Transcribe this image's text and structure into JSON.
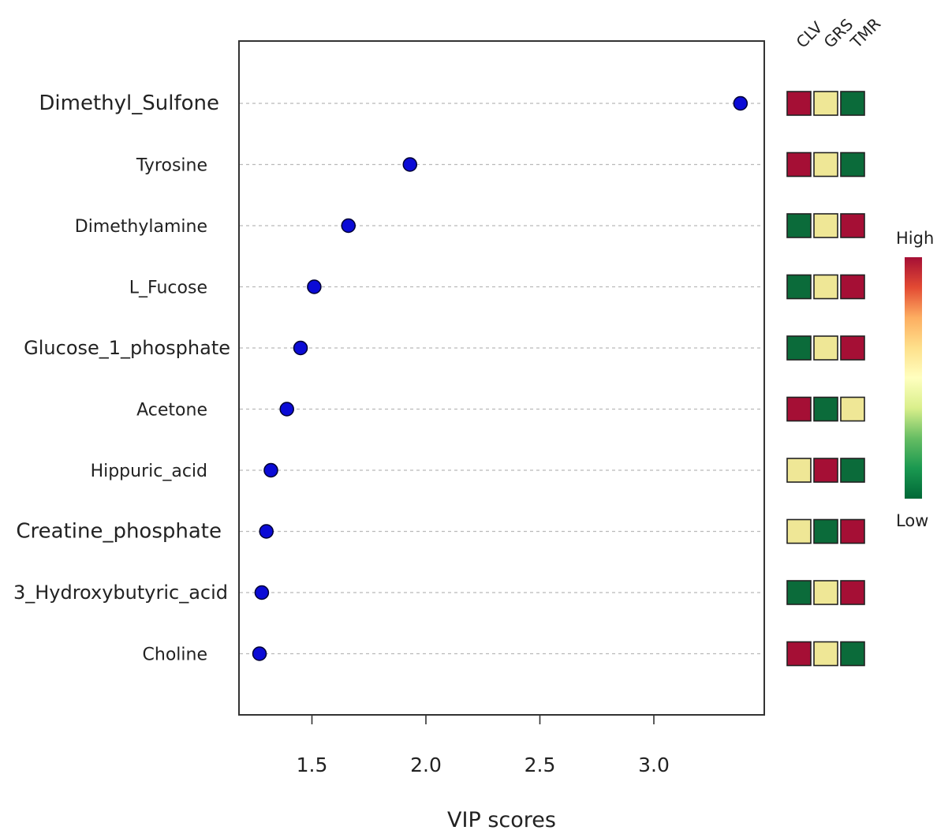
{
  "chart_data": {
    "type": "scatter",
    "title": "",
    "xlabel": "VIP scores",
    "ylabel": "",
    "xlim": [
      1.22,
      3.45
    ],
    "xticks": [
      1.5,
      2.0,
      2.5,
      3.0
    ],
    "xtick_labels": [
      "1.5",
      "2.0",
      "2.5",
      "3.0"
    ],
    "grid": "horizontal dashed",
    "point_color": "#0b0bd6",
    "features": [
      {
        "name": "Dimethyl_Sulfone",
        "vip": 3.38,
        "levels": [
          "high",
          "mid",
          "low"
        ]
      },
      {
        "name": "Tyrosine",
        "vip": 1.93,
        "levels": [
          "high",
          "mid",
          "low"
        ]
      },
      {
        "name": "Dimethylamine",
        "vip": 1.66,
        "levels": [
          "low",
          "mid",
          "high"
        ]
      },
      {
        "name": "L_Fucose",
        "vip": 1.51,
        "levels": [
          "low",
          "mid",
          "high"
        ]
      },
      {
        "name": "Glucose_1_phosphate",
        "vip": 1.45,
        "levels": [
          "low",
          "mid",
          "high"
        ]
      },
      {
        "name": "Acetone",
        "vip": 1.39,
        "levels": [
          "high",
          "low",
          "mid"
        ]
      },
      {
        "name": "Hippuric_acid",
        "vip": 1.32,
        "levels": [
          "mid",
          "high",
          "low"
        ]
      },
      {
        "name": "Creatine_phosphate",
        "vip": 1.3,
        "levels": [
          "mid",
          "low",
          "high"
        ]
      },
      {
        "name": "3_Hydroxybutyric_acid",
        "vip": 1.28,
        "levels": [
          "low",
          "mid",
          "high"
        ]
      },
      {
        "name": "Choline",
        "vip": 1.27,
        "levels": [
          "high",
          "mid",
          "low"
        ]
      }
    ],
    "heatmap_columns": [
      "CLV",
      "GRS",
      "TMR"
    ],
    "heatmap_colors": {
      "high": "#a50f35",
      "mid": "#efe796",
      "low": "#0b6b3a"
    },
    "legend": {
      "high_label": "High",
      "low_label": "Low",
      "gradient": [
        "#a50f35",
        "#e34a33",
        "#fdae61",
        "#fee08b",
        "#ffffbf",
        "#d9ef8b",
        "#66bd63",
        "#1a9850",
        "#006837"
      ],
      "placement": "right"
    }
  }
}
